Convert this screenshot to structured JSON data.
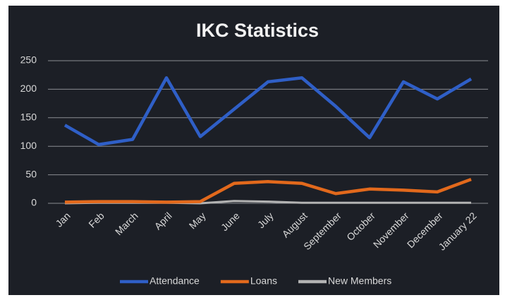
{
  "chart_data": {
    "type": "line",
    "title": "IKC Statistics",
    "categories": [
      "Jan",
      "Feb",
      "March",
      "April",
      "May",
      "June",
      "July",
      "August",
      "September",
      "October",
      "November",
      "December",
      "January 22"
    ],
    "series": [
      {
        "name": "Attendance",
        "color": "#2f5fc7",
        "values": [
          137,
          103,
          112,
          220,
          117,
          165,
          213,
          220,
          170,
          115,
          213,
          183,
          218
        ]
      },
      {
        "name": "Loans",
        "color": "#e2691c",
        "values": [
          2,
          3,
          3,
          2,
          3,
          35,
          38,
          35,
          17,
          25,
          23,
          20,
          42
        ]
      },
      {
        "name": "New Members",
        "color": "#b3b3b3",
        "values": [
          0,
          1,
          1,
          1,
          0,
          4,
          3,
          1,
          1,
          1,
          1,
          1,
          1
        ]
      }
    ],
    "ylim": [
      0,
      250
    ],
    "yticks": [
      0,
      50,
      100,
      150,
      200,
      250
    ],
    "grid": true,
    "legend": "bottom"
  }
}
